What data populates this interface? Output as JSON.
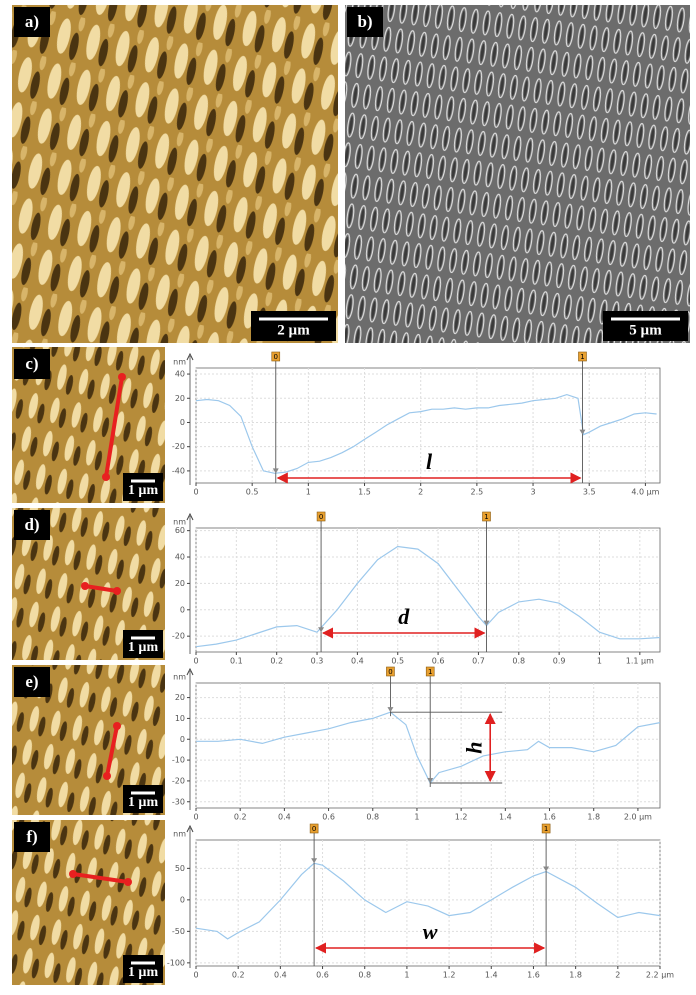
{
  "images": [
    {
      "label": "a)",
      "scale": "2 µm"
    },
    {
      "label": "b)",
      "scale": "5 µm"
    },
    {
      "label": "c)",
      "scale": "1 µm"
    },
    {
      "label": "d)",
      "scale": "1 µm"
    },
    {
      "label": "e)",
      "scale": "1 µm"
    },
    {
      "label": "f)",
      "scale": "1 µm"
    }
  ],
  "chart_data": [
    {
      "type": "line",
      "y_unit": "nm",
      "color": "#9cc8ec",
      "x": [
        0,
        0.1,
        0.2,
        0.3,
        0.4,
        0.5,
        0.6,
        0.7,
        0.8,
        0.9,
        1.0,
        1.1,
        1.2,
        1.3,
        1.4,
        1.5,
        1.6,
        1.7,
        1.8,
        1.9,
        2.0,
        2.1,
        2.2,
        2.3,
        2.4,
        2.5,
        2.6,
        2.7,
        2.8,
        2.9,
        3.0,
        3.1,
        3.2,
        3.3,
        3.4,
        3.45,
        3.5,
        3.6,
        3.7,
        3.8,
        3.9,
        4.0,
        4.1
      ],
      "values": [
        18,
        19,
        18,
        14,
        5,
        -20,
        -40,
        -42,
        -41,
        -38,
        -33,
        -32,
        -29,
        -25,
        -20,
        -14,
        -8,
        -2,
        3,
        8,
        9,
        11,
        11,
        12,
        11,
        12,
        12,
        14,
        15,
        16,
        18,
        19,
        20,
        23,
        20,
        -10,
        -8,
        -3,
        0,
        3,
        7,
        8,
        7
      ],
      "xlim": [
        0,
        4.13
      ],
      "ylim": [
        -50,
        45
      ],
      "xticks": [
        0,
        0.5,
        1.0,
        1.5,
        2.0,
        2.5,
        3.0,
        3.5,
        {
          "value": 4.0,
          "label": "4.0 µm"
        }
      ],
      "yticks": [
        40,
        20,
        0,
        -20,
        -40
      ],
      "cursors": [
        {
          "label": "0",
          "x": 0.71,
          "y": -42
        },
        {
          "label": "1",
          "x": 3.44,
          "y": -10
        }
      ],
      "arrow": "horizontal",
      "annotation": "l"
    },
    {
      "type": "line",
      "y_unit": "nm",
      "color": "#9cc8ec",
      "x": [
        0,
        0.05,
        0.1,
        0.15,
        0.2,
        0.25,
        0.3,
        0.35,
        0.4,
        0.45,
        0.5,
        0.55,
        0.6,
        0.65,
        0.7,
        0.72,
        0.75,
        0.8,
        0.85,
        0.9,
        0.95,
        1.0,
        1.05,
        1.1,
        1.15
      ],
      "values": [
        -28,
        -26,
        -23,
        -18,
        -13,
        -12,
        -17,
        0,
        20,
        38,
        48,
        46,
        35,
        15,
        -5,
        -12,
        -2,
        6,
        8,
        5,
        -5,
        -17,
        -22,
        -22,
        -21
      ],
      "xlim": [
        0,
        1.15
      ],
      "ylim": [
        -32,
        62
      ],
      "xticks": [
        0,
        0.1,
        0.2,
        0.3,
        0.4,
        0.5,
        0.6,
        0.7,
        0.8,
        0.9,
        1.0,
        {
          "value": 1.1,
          "label": "1.1 µm"
        }
      ],
      "yticks": [
        60,
        40,
        20,
        0,
        -20
      ],
      "cursors": [
        {
          "label": "0",
          "x": 0.31,
          "y": -17
        },
        {
          "label": "1",
          "x": 0.72,
          "y": -12
        }
      ],
      "arrow": "horizontal",
      "annotation": "d"
    },
    {
      "type": "line",
      "y_unit": "nm",
      "color": "#9cc8ec",
      "x": [
        0,
        0.1,
        0.2,
        0.3,
        0.4,
        0.5,
        0.6,
        0.7,
        0.8,
        0.88,
        0.95,
        1.0,
        1.06,
        1.1,
        1.2,
        1.3,
        1.4,
        1.5,
        1.55,
        1.6,
        1.7,
        1.8,
        1.9,
        2.0,
        2.1
      ],
      "values": [
        -1,
        -1,
        0,
        -2,
        1,
        3,
        5,
        8,
        10,
        13,
        7,
        -8,
        -21,
        -16,
        -13,
        -8,
        -6,
        -5,
        -1,
        -4,
        -4,
        -6,
        -3,
        6,
        8
      ],
      "xlim": [
        0,
        2.1
      ],
      "ylim": [
        -33,
        27
      ],
      "xticks": [
        0,
        0.2,
        0.4,
        0.6,
        0.8,
        1.0,
        1.2,
        1.4,
        1.6,
        1.8,
        {
          "value": 2.0,
          "label": "2.0 µm"
        }
      ],
      "yticks": [
        20,
        10,
        0,
        -10,
        -20,
        -30
      ],
      "cursors": [
        {
          "label": "0",
          "x": 0.88,
          "y": 13
        },
        {
          "label": "1",
          "x": 1.06,
          "y": -21
        }
      ],
      "arrow": "vertical",
      "annotation": "h"
    },
    {
      "type": "line",
      "y_unit": "nm",
      "color": "#9cc8ec",
      "x": [
        0,
        0.1,
        0.15,
        0.2,
        0.3,
        0.4,
        0.5,
        0.56,
        0.6,
        0.7,
        0.8,
        0.9,
        1.0,
        1.1,
        1.2,
        1.3,
        1.4,
        1.5,
        1.6,
        1.66,
        1.8,
        1.9,
        2.0,
        2.1,
        2.2
      ],
      "values": [
        -45,
        -50,
        -62,
        -52,
        -35,
        0,
        40,
        58,
        55,
        30,
        0,
        -20,
        -3,
        -10,
        -25,
        -20,
        0,
        20,
        38,
        45,
        20,
        -5,
        -28,
        -20,
        -25
      ],
      "xlim": [
        0,
        2.2
      ],
      "ylim": [
        -105,
        95
      ],
      "xticks": [
        0,
        0.2,
        0.4,
        0.6,
        0.8,
        1.0,
        1.2,
        1.4,
        1.6,
        1.8,
        2.0,
        {
          "value": 2.2,
          "label": "2.2 µm"
        }
      ],
      "yticks": [
        50,
        0,
        -50,
        -100
      ],
      "cursors": [
        {
          "label": "0",
          "x": 0.56,
          "y": 58
        },
        {
          "label": "1",
          "x": 1.66,
          "y": 45
        }
      ],
      "arrow": "horizontal",
      "annotation": "w"
    }
  ]
}
